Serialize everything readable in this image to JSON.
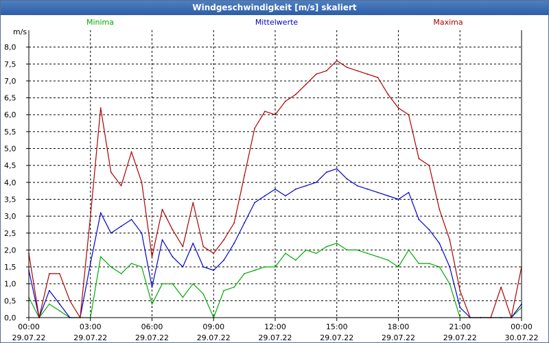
{
  "window": {
    "title": "Windgeschwindigkeit [m/s] skaliert"
  },
  "chart_data": {
    "type": "line",
    "title": "Windgeschwindigkeit [m/s] skaliert",
    "ylabel": "m/s",
    "xlabel": "",
    "ylim": [
      0,
      8.5
    ],
    "xlim_hours": [
      0,
      24
    ],
    "grid": true,
    "y_ticks": [
      "0,0",
      "0,5",
      "1,0",
      "1,5",
      "2,0",
      "2,5",
      "3,0",
      "3,5",
      "4,0",
      "4,5",
      "5,0",
      "5,5",
      "6,0",
      "6,5",
      "7,0",
      "7,5",
      "8,0"
    ],
    "x_ticks": [
      {
        "time": "00:00",
        "date": "29.07.22"
      },
      {
        "time": "03:00",
        "date": "29.07.22"
      },
      {
        "time": "06:00",
        "date": "29.07.22"
      },
      {
        "time": "09:00",
        "date": "29.07.22"
      },
      {
        "time": "12:00",
        "date": "29.07.22"
      },
      {
        "time": "15:00",
        "date": "29.07.22"
      },
      {
        "time": "18:00",
        "date": "29.07.22"
      },
      {
        "time": "21:00",
        "date": "29.07.22"
      },
      {
        "time": "00:00",
        "date": "30.07.22"
      }
    ],
    "x_hours": [
      0,
      0.5,
      1,
      1.5,
      2,
      2.5,
      3,
      3.5,
      4,
      4.5,
      5,
      5.5,
      6,
      6.5,
      7,
      7.5,
      8,
      8.5,
      9,
      9.5,
      10,
      10.5,
      11,
      11.5,
      12,
      12.5,
      13,
      13.5,
      14,
      14.5,
      15,
      15.5,
      16,
      16.5,
      17,
      17.5,
      18,
      18.5,
      19,
      19.5,
      20,
      20.5,
      21,
      21.5,
      22,
      22.5,
      23,
      23.5,
      24
    ],
    "series": [
      {
        "name": "Minima",
        "color": "#00aa00",
        "values": [
          0.6,
          0.0,
          0.4,
          0.2,
          0.0,
          0.0,
          0.0,
          1.8,
          1.5,
          1.3,
          1.6,
          1.5,
          0.4,
          1.0,
          1.0,
          0.6,
          1.0,
          0.7,
          0.0,
          0.8,
          0.9,
          1.3,
          1.4,
          1.5,
          1.5,
          1.9,
          1.7,
          2.0,
          1.9,
          2.1,
          2.2,
          2.0,
          2.0,
          1.9,
          1.8,
          1.7,
          1.5,
          2.0,
          1.6,
          1.6,
          1.5,
          1.0,
          0.0,
          0.0,
          0.0,
          0.0,
          0.0,
          0.0,
          0.3
        ]
      },
      {
        "name": "Mittelwerte",
        "color": "#0000cc",
        "values": [
          1.4,
          0.0,
          0.8,
          0.4,
          0.0,
          0.0,
          1.6,
          3.1,
          2.5,
          2.7,
          2.9,
          2.5,
          0.9,
          2.3,
          1.8,
          1.5,
          2.2,
          1.5,
          1.4,
          1.7,
          2.2,
          2.8,
          3.4,
          3.6,
          3.8,
          3.6,
          3.8,
          3.9,
          4.0,
          4.3,
          4.4,
          4.1,
          3.9,
          3.8,
          3.7,
          3.6,
          3.5,
          3.7,
          2.9,
          2.6,
          2.2,
          1.5,
          0.3,
          0.0,
          0.0,
          0.0,
          0.0,
          0.0,
          0.4
        ]
      },
      {
        "name": "Maxima",
        "color": "#aa0000",
        "values": [
          1.9,
          0.0,
          1.3,
          1.3,
          0.5,
          0.0,
          3.0,
          6.2,
          4.3,
          3.9,
          4.9,
          4.0,
          1.8,
          3.2,
          2.6,
          2.1,
          3.4,
          2.1,
          1.9,
          2.3,
          2.8,
          4.2,
          5.6,
          6.1,
          6.0,
          6.4,
          6.6,
          6.9,
          7.2,
          7.3,
          7.6,
          7.4,
          7.3,
          7.2,
          7.1,
          6.6,
          6.2,
          6.0,
          4.7,
          4.5,
          3.2,
          2.3,
          0.8,
          0.0,
          0.0,
          0.0,
          0.9,
          0.0,
          1.5
        ]
      }
    ]
  }
}
